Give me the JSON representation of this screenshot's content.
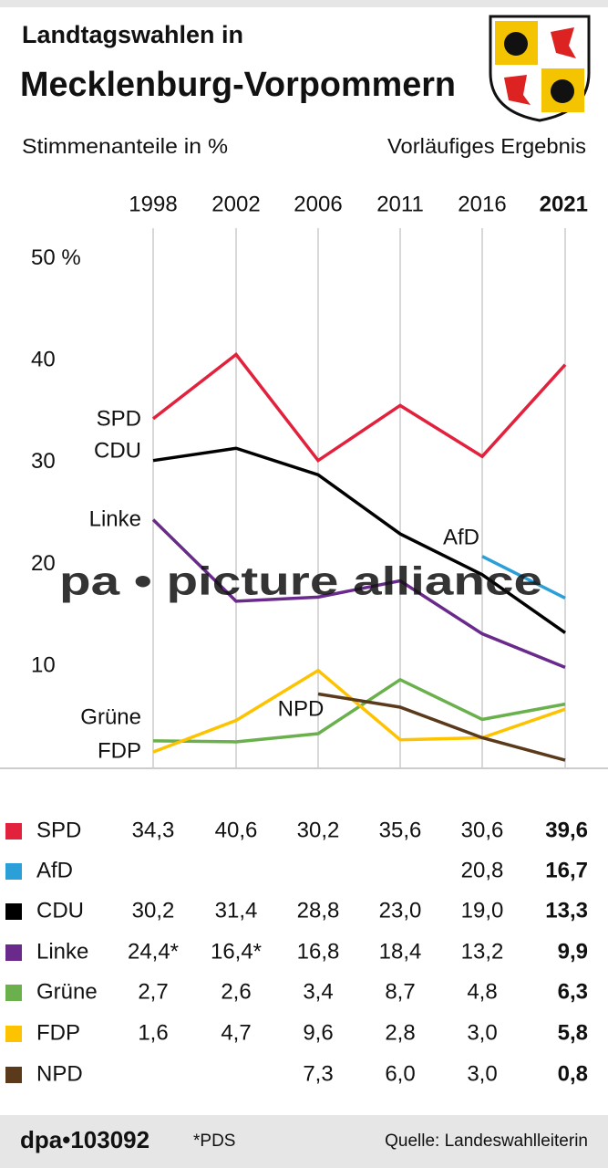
{
  "chart_data": {
    "type": "line",
    "kicker": "Landtagswahlen in",
    "title": "Mecklenburg-Vorpommern",
    "y_label": "Stimmenanteile in %",
    "note": "Vorläufiges Ergebnis",
    "categories": [
      "1998",
      "2002",
      "2006",
      "2011",
      "2016",
      "2021"
    ],
    "ylim": [
      0,
      53
    ],
    "yticks": [
      10,
      20,
      30,
      40,
      {
        "value": 50,
        "label": "50 %"
      }
    ],
    "grid": true,
    "series": [
      {
        "name": "SPD",
        "color": "#e2213c",
        "values": [
          34.3,
          40.6,
          30.2,
          35.6,
          30.6,
          39.6
        ],
        "value_labels": [
          "34,3",
          "40,6",
          "30,2",
          "35,6",
          "30,6",
          "39,6"
        ]
      },
      {
        "name": "AfD",
        "color": "#2a9fd8",
        "values": [
          null,
          null,
          null,
          null,
          20.8,
          16.7
        ],
        "value_labels": [
          null,
          null,
          null,
          null,
          "20,8",
          "16,7"
        ]
      },
      {
        "name": "CDU",
        "color": "#000000",
        "values": [
          30.2,
          31.4,
          28.8,
          23.0,
          19.0,
          13.3
        ],
        "value_labels": [
          "30,2",
          "31,4",
          "28,8",
          "23,0",
          "19,0",
          "13,3"
        ]
      },
      {
        "name": "Linke",
        "color": "#6a2a8c",
        "values": [
          24.4,
          16.4,
          16.8,
          18.4,
          13.2,
          9.9
        ],
        "value_labels": [
          "24,4*",
          "16,4*",
          "16,8",
          "18,4",
          "13,2",
          "9,9"
        ]
      },
      {
        "name": "Grüne",
        "color": "#6ab04c",
        "values": [
          2.7,
          2.6,
          3.4,
          8.7,
          4.8,
          6.3
        ],
        "value_labels": [
          "2,7",
          "2,6",
          "3,4",
          "8,7",
          "4,8",
          "6,3"
        ]
      },
      {
        "name": "FDP",
        "color": "#fdc300",
        "values": [
          1.6,
          4.7,
          9.6,
          2.8,
          3.0,
          5.8
        ],
        "value_labels": [
          "1,6",
          "4,7",
          "9,6",
          "2,8",
          "3,0",
          "5,8"
        ]
      },
      {
        "name": "NPD",
        "color": "#5a3a1a",
        "values": [
          null,
          null,
          7.3,
          6.0,
          3.0,
          0.8
        ],
        "value_labels": [
          null,
          null,
          "7,3",
          "6,0",
          "3,0",
          "0,8"
        ]
      }
    ],
    "watermark": "pa • picture alliance",
    "footer_id": "dpa•103092",
    "footnote": "*PDS",
    "source": "Quelle: Landeswahlleiterin"
  }
}
